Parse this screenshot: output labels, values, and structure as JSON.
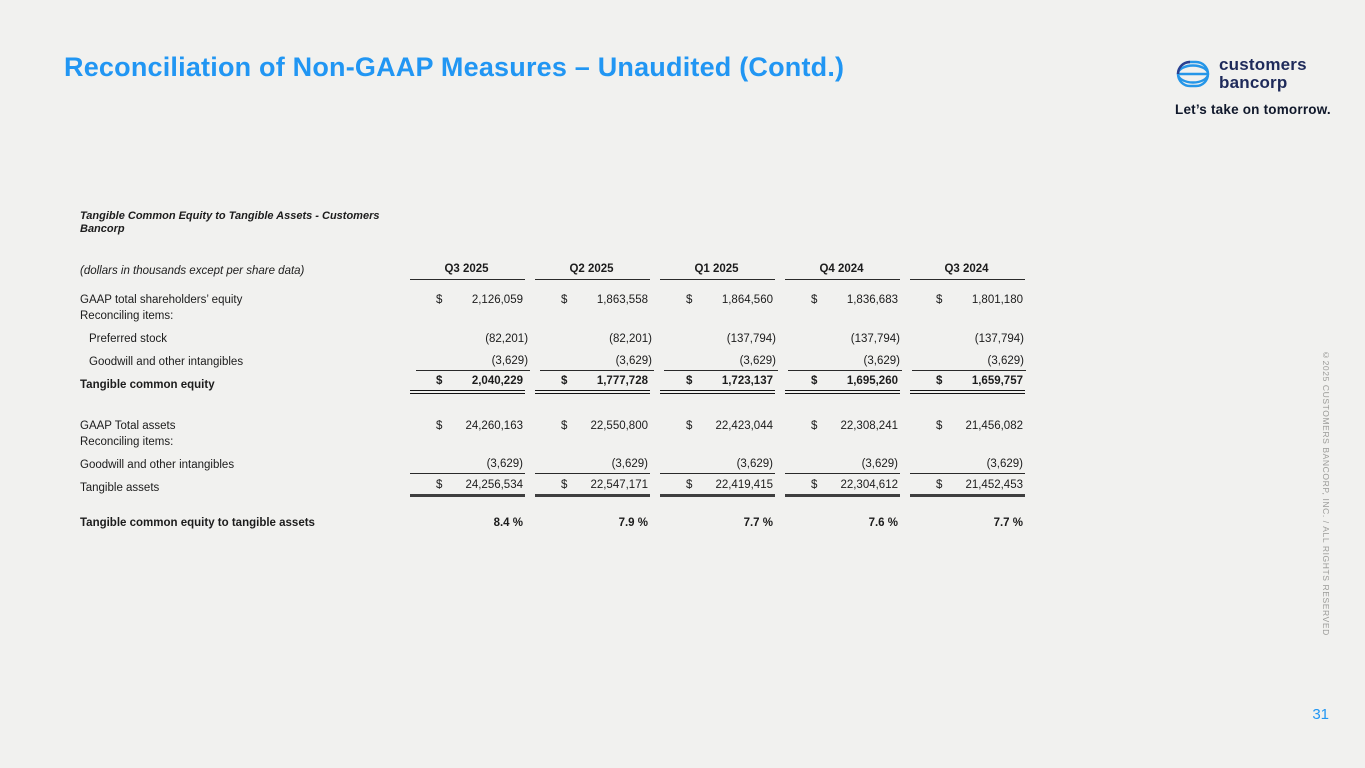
{
  "slide": {
    "title": "Reconciliation of Non-GAAP Measures – Unaudited (Contd.)",
    "page_number": "31",
    "copyright": "©2025 CUSTOMERS BANCORP, INC. / ALL RIGHTS RESERVED",
    "colors": {
      "accent_blue": "#2196f3",
      "brand_navy": "#1e2a5a",
      "background": "#f1f1ef",
      "text": "#1c1c1c",
      "muted_gray": "#9b9b98"
    }
  },
  "logo": {
    "icon": "customers-bancorp-mark",
    "name_line1": "customers",
    "name_line2": "bancorp",
    "tagline": "Let’s take on tomorrow."
  },
  "table": {
    "title": "Tangible Common Equity to Tangible Assets - Customers Bancorp",
    "subtitle": "(dollars in thousands except per share data)",
    "columns": [
      "Q3 2025",
      "Q2 2025",
      "Q1 2025",
      "Q4 2024",
      "Q3 2024"
    ],
    "rows": [
      {
        "label": "GAAP total shareholders’ equity",
        "dollar": true,
        "values": [
          "2,126,059",
          "1,863,558",
          "1,864,560",
          "1,836,683",
          "1,801,180"
        ]
      },
      {
        "label": "Reconciling items:",
        "note": true,
        "values": []
      },
      {
        "label": "Preferred stock",
        "indent": true,
        "values": [
          "(82,201)",
          "(82,201)",
          "(137,794)",
          "(137,794)",
          "(137,794)"
        ]
      },
      {
        "label": "Goodwill and other intangibles",
        "indent": true,
        "rule": "thin",
        "values": [
          "(3,629)",
          "(3,629)",
          "(3,629)",
          "(3,629)",
          "(3,629)"
        ]
      },
      {
        "label": "Tangible common equity",
        "bold": true,
        "dollar": true,
        "rule": "double",
        "values": [
          "2,040,229",
          "1,777,728",
          "1,723,137",
          "1,695,260",
          "1,659,757"
        ]
      },
      {
        "spacer": "lg"
      },
      {
        "label": "GAAP Total assets",
        "dollar": true,
        "values": [
          "24,260,163",
          "22,550,800",
          "22,423,044",
          "22,308,241",
          "21,456,082"
        ]
      },
      {
        "label": "Reconciling items:",
        "note": true,
        "values": []
      },
      {
        "label": "Goodwill and other intangibles",
        "rule": "thin",
        "values": [
          "(3,629)",
          "(3,629)",
          "(3,629)",
          "(3,629)",
          "(3,629)"
        ]
      },
      {
        "label": "Tangible assets",
        "dollar": true,
        "rule": "thick",
        "values": [
          "24,256,534",
          "22,547,171",
          "22,419,415",
          "22,304,612",
          "21,452,453"
        ]
      },
      {
        "spacer": "sm"
      },
      {
        "label": "Tangible common equity to tangible assets",
        "bold": true,
        "values": [
          "8.4 %",
          "7.9 %",
          "7.7 %",
          "7.6 %",
          "7.7 %"
        ]
      }
    ]
  }
}
